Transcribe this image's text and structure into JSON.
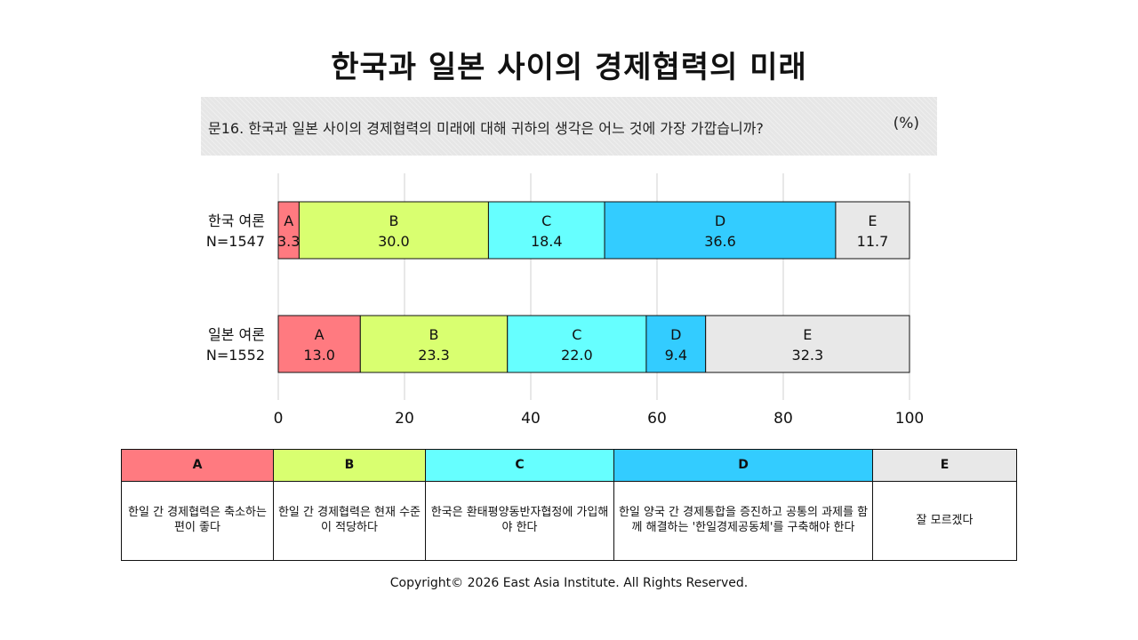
{
  "page_title": "한국과 일본 사이의 경제협력의 미래",
  "question": {
    "text": "문16. 한국과 일본 사이의 경제협력의 미래에 대해 귀하의 생각은 어느 것에 가장 가깝습니까?",
    "unit": "(%)"
  },
  "chart_data": {
    "type": "bar",
    "orientation": "horizontal",
    "stacked": true,
    "categories": [
      "한국 여론\nN=1547",
      "일본 여론\nN=1552"
    ],
    "series": [
      {
        "name": "A",
        "values": [
          3.3,
          13.0
        ],
        "color": "#ff7a80"
      },
      {
        "name": "B",
        "values": [
          30.0,
          23.3
        ],
        "color": "#d9ff70"
      },
      {
        "name": "C",
        "values": [
          18.4,
          22.0
        ],
        "color": "#66ffff"
      },
      {
        "name": "D",
        "values": [
          36.6,
          9.4
        ],
        "color": "#33ccff"
      },
      {
        "name": "E",
        "values": [
          11.7,
          32.3
        ],
        "color": "#e8e8e8"
      }
    ],
    "xlim": [
      0,
      100
    ],
    "xticks": [
      0,
      20,
      40,
      60,
      80,
      100
    ],
    "grid": true
  },
  "legend_table": {
    "headers": [
      "A",
      "B",
      "C",
      "D",
      "E"
    ],
    "descriptions": [
      "한일 간 경제협력은 축소하는 편이 좋다",
      "한일 간 경제협력은 현재 수준이 적당하다",
      "한국은 환태평양동반자협정에 가입해야 한다",
      "한일 양국 간 경제통합을 증진하고 공통의 과제를 함께 해결하는 '한일경제공동체'를 구축해야 한다",
      "잘 모르겠다"
    ]
  },
  "copyright": "Copyright© 2026 East Asia Institute. All Rights Reserved."
}
